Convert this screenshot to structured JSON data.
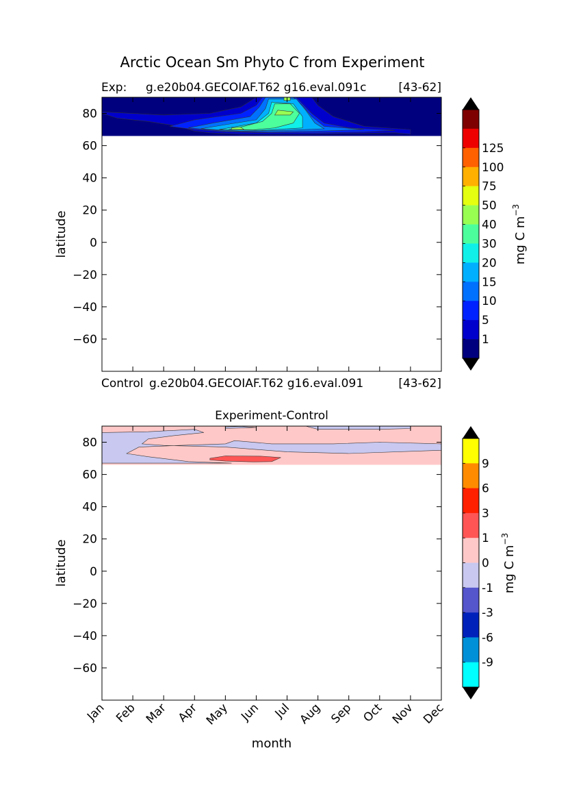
{
  "figure": {
    "title": "Arctic Ocean Sm Phyto C from Experiment"
  },
  "months": [
    "Jan",
    "Feb",
    "Mar",
    "Apr",
    "May",
    "Jun",
    "Jul",
    "Aug",
    "Sep",
    "Oct",
    "Nov",
    "Dec"
  ],
  "chart_data": [
    {
      "type": "heatmap",
      "label_left": "Exp:",
      "label_center": "g.e20b04.GECOIAF.T62 g16.eval.091c",
      "label_right": "[43-62]",
      "xlabel": "",
      "ylabel": "latitude",
      "ylim": [
        -80,
        90
      ],
      "yticks": [
        80,
        60,
        40,
        20,
        0,
        -20,
        -40,
        -60
      ],
      "data_lat_range": [
        66,
        90
      ],
      "colorbar": {
        "label": "mg C m",
        "label_sup": "−3",
        "levels": [
          "1",
          "5",
          "10",
          "15",
          "20",
          "30",
          "40",
          "50",
          "75",
          "100",
          "125"
        ],
        "colors": [
          "#00007f",
          "#0000cc",
          "#0022ff",
          "#0070ff",
          "#00b0ff",
          "#10f0e8",
          "#4cff9c",
          "#98ff52",
          "#e4ff10",
          "#ffb000",
          "#ff6000",
          "#ee0000",
          "#7f0000"
        ],
        "extend": "both"
      },
      "contours": [
        {
          "level": 1,
          "points": [
            [
              0.0,
              80
            ],
            [
              0.5,
              77
            ],
            [
              1.5,
              75
            ],
            [
              2.5,
              72
            ],
            [
              3.0,
              69
            ],
            [
              3.5,
              68
            ],
            [
              4.5,
              67
            ],
            [
              6.5,
              67
            ],
            [
              8.0,
              67.5
            ],
            [
              9.5,
              68
            ],
            [
              10.0,
              67
            ],
            [
              10.0,
              70
            ],
            [
              8.5,
              72
            ],
            [
              7.5,
              78
            ],
            [
              7.0,
              85
            ],
            [
              6.8,
              90
            ],
            [
              5.0,
              90
            ],
            [
              4.5,
              84
            ],
            [
              3.5,
              80
            ],
            [
              2.0,
              79
            ],
            [
              0.0,
              81
            ]
          ]
        },
        {
          "level": 5,
          "points": [
            [
              2.2,
              72
            ],
            [
              3.0,
              70
            ],
            [
              4.0,
              68.5
            ],
            [
              5.5,
              68
            ],
            [
              7.0,
              68
            ],
            [
              8.5,
              68.5
            ],
            [
              9.5,
              69.5
            ],
            [
              8.0,
              71
            ],
            [
              7.2,
              74
            ],
            [
              6.8,
              80
            ],
            [
              6.5,
              86
            ],
            [
              6.3,
              90
            ],
            [
              5.2,
              90
            ],
            [
              5.0,
              85
            ],
            [
              4.5,
              80
            ],
            [
              3.0,
              76
            ]
          ]
        },
        {
          "level": 10,
          "points": [
            [
              2.8,
              71
            ],
            [
              4.0,
              69
            ],
            [
              5.5,
              68.5
            ],
            [
              7.0,
              69
            ],
            [
              8.5,
              70
            ],
            [
              7.2,
              72
            ],
            [
              6.8,
              78
            ],
            [
              6.5,
              85
            ],
            [
              6.2,
              90
            ],
            [
              5.3,
              90
            ],
            [
              5.1,
              84
            ],
            [
              4.8,
              78
            ],
            [
              3.6,
              74
            ]
          ]
        },
        {
          "level": 15,
          "points": [
            [
              3.2,
              70.5
            ],
            [
              4.5,
              69
            ],
            [
              6.0,
              69.5
            ],
            [
              7.2,
              70.5
            ],
            [
              6.9,
              74
            ],
            [
              6.6,
              82
            ],
            [
              6.3,
              89
            ],
            [
              5.4,
              89
            ],
            [
              5.3,
              83
            ],
            [
              5.0,
              76
            ],
            [
              4.0,
              73
            ]
          ]
        },
        {
          "level": 20,
          "points": [
            [
              3.8,
              70
            ],
            [
              5.2,
              69.5
            ],
            [
              6.5,
              71
            ],
            [
              6.5,
              78
            ],
            [
              6.2,
              86
            ],
            [
              5.5,
              87
            ],
            [
              5.4,
              80
            ],
            [
              5.0,
              74
            ]
          ]
        },
        {
          "level": 30,
          "points": [
            [
              4.1,
              70
            ],
            [
              4.9,
              69.8
            ],
            [
              5.6,
              71
            ],
            [
              6.2,
              74
            ],
            [
              6.4,
              80
            ],
            [
              6.1,
              86
            ],
            [
              5.6,
              86
            ],
            [
              5.5,
              80
            ],
            [
              5.2,
              75
            ],
            [
              4.6,
              72
            ]
          ]
        },
        {
          "level": 40,
          "points": [
            [
              4.2,
              70
            ],
            [
              4.6,
              70
            ],
            [
              4.5,
              71.5
            ],
            [
              4.2,
              71
            ]
          ]
        },
        {
          "level": 40,
          "points": [
            [
              5.6,
              79
            ],
            [
              6.1,
              79
            ],
            [
              6.2,
              81
            ],
            [
              5.7,
              82
            ]
          ]
        },
        {
          "level": 40,
          "points": [
            [
              5.9,
              88
            ],
            [
              6.1,
              88
            ],
            [
              6.1,
              90
            ],
            [
              5.9,
              90
            ]
          ]
        }
      ]
    },
    {
      "type": "heatmap",
      "label_left": "Control",
      "label_center": "g.e20b04.GECOIAF.T62 g16.eval.091",
      "label_right": "[43-62]",
      "title": "Experiment-Control",
      "xlabel": "month",
      "ylabel": "latitude",
      "ylim": [
        -80,
        90
      ],
      "yticks": [
        80,
        60,
        40,
        20,
        0,
        -20,
        -40,
        -60
      ],
      "data_lat_range": [
        66,
        90
      ],
      "colorbar": {
        "label": "mg C m",
        "label_sup": "−3",
        "levels": [
          "9",
          "6",
          "3",
          "1",
          "0",
          "-1",
          "-3",
          "-6",
          "-9"
        ],
        "colors": [
          "#ffff00",
          "#ff8c00",
          "#ff2000",
          "#ff5555",
          "#ffc8c8",
          "#c8c8f0",
          "#5555cc",
          "#0022bb",
          "#0090d8",
          "#00ffff"
        ],
        "extend": "both"
      },
      "contours": [
        {
          "level": "neg",
          "points": [
            [
              0.0,
              86
            ],
            [
              1.5,
              86.5
            ],
            [
              3.0,
              88
            ],
            [
              3.3,
              86
            ],
            [
              2.3,
              84
            ],
            [
              1.5,
              82
            ],
            [
              1.3,
              79
            ],
            [
              2.0,
              78
            ],
            [
              4.0,
              77
            ],
            [
              6.0,
              74
            ],
            [
              8.0,
              73
            ],
            [
              11.0,
              75
            ],
            [
              11.0,
              79
            ],
            [
              9.0,
              80
            ],
            [
              7.5,
              79
            ],
            [
              5.5,
              79
            ],
            [
              4.3,
              81
            ],
            [
              4.0,
              79
            ],
            [
              2.5,
              78
            ],
            [
              1.2,
              77
            ],
            [
              0.8,
              73
            ],
            [
              1.5,
              71
            ],
            [
              2.8,
              68
            ],
            [
              4.2,
              67
            ],
            [
              0.0,
              67
            ]
          ]
        },
        {
          "level": "neg",
          "points": [
            [
              6.6,
              90
            ],
            [
              7.0,
              88
            ],
            [
              9.0,
              88
            ],
            [
              10.0,
              88.5
            ],
            [
              10.0,
              90
            ]
          ]
        },
        {
          "level": "neg",
          "points": [
            [
              4.0,
              88.5
            ],
            [
              5.0,
              89.2
            ],
            [
              4.5,
              89.8
            ],
            [
              4.0,
              89.5
            ]
          ]
        },
        {
          "level": "pos1",
          "points": [
            [
              3.5,
              70
            ],
            [
              4.0,
              71.5
            ],
            [
              5.2,
              71.3
            ],
            [
              5.8,
              70.5
            ],
            [
              5.5,
              68
            ],
            [
              4.9,
              67.8
            ],
            [
              4.0,
              68.3
            ],
            [
              3.5,
              69
            ]
          ]
        }
      ]
    }
  ]
}
